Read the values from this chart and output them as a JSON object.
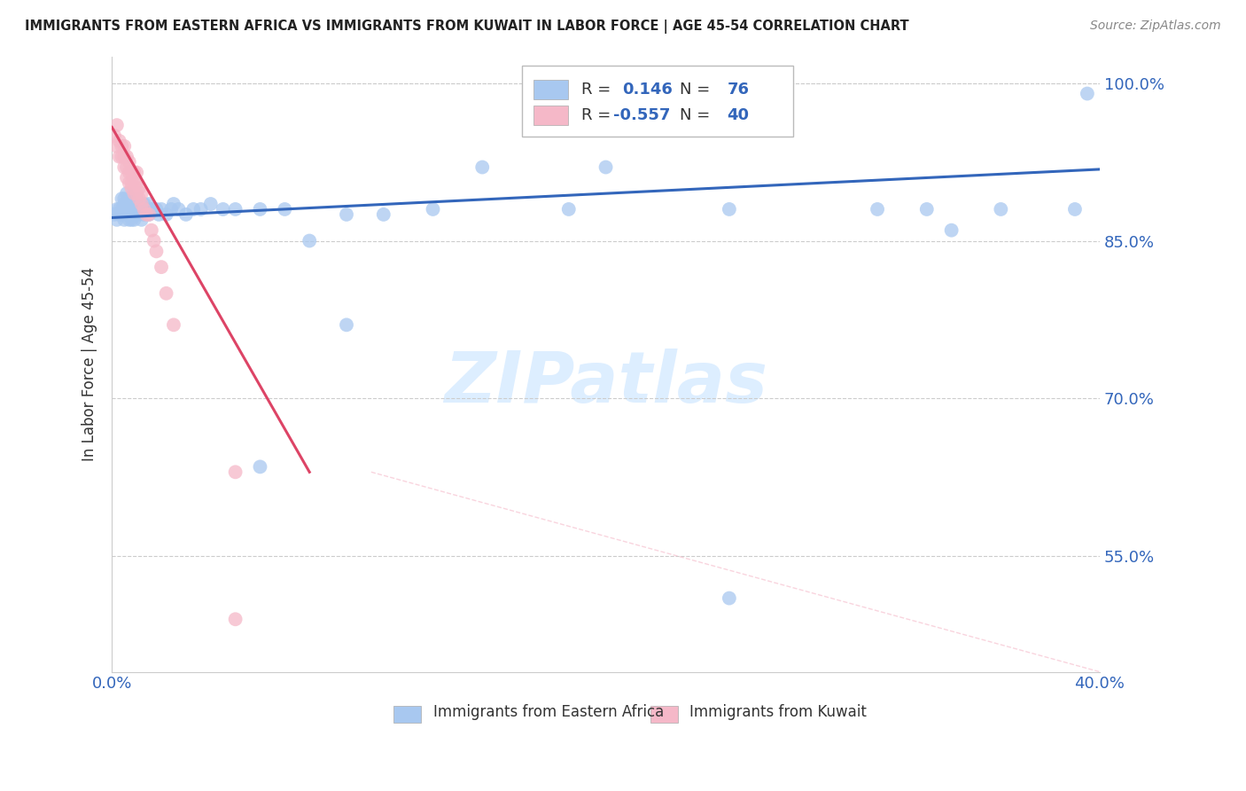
{
  "title": "IMMIGRANTS FROM EASTERN AFRICA VS IMMIGRANTS FROM KUWAIT IN LABOR FORCE | AGE 45-54 CORRELATION CHART",
  "source": "Source: ZipAtlas.com",
  "ylabel": "In Labor Force | Age 45-54",
  "legend_label1": "Immigrants from Eastern Africa",
  "legend_label2": "Immigrants from Kuwait",
  "R1": 0.146,
  "N1": 76,
  "R2": -0.557,
  "N2": 40,
  "xlim": [
    0.0,
    0.4
  ],
  "ylim": [
    0.44,
    1.025
  ],
  "yticks": [
    0.55,
    0.7,
    0.85,
    1.0
  ],
  "ytick_labels": [
    "55.0%",
    "70.0%",
    "85.0%",
    "100.0%"
  ],
  "xticks": [
    0.0,
    0.1,
    0.2,
    0.3,
    0.4
  ],
  "xtick_labels": [
    "0.0%",
    "",
    "",
    "",
    "40.0%"
  ],
  "color_blue": "#a8c8f0",
  "color_pink": "#f5b8c8",
  "line_blue": "#3366bb",
  "line_pink": "#dd4466",
  "watermark_color": "#ddeeff",
  "blue_scatter_x": [
    0.001,
    0.002,
    0.002,
    0.003,
    0.003,
    0.004,
    0.004,
    0.004,
    0.005,
    0.005,
    0.005,
    0.005,
    0.006,
    0.006,
    0.006,
    0.006,
    0.007,
    0.007,
    0.007,
    0.007,
    0.007,
    0.008,
    0.008,
    0.008,
    0.008,
    0.009,
    0.009,
    0.009,
    0.009,
    0.01,
    0.01,
    0.01,
    0.01,
    0.011,
    0.011,
    0.012,
    0.012,
    0.013,
    0.013,
    0.014,
    0.015,
    0.015,
    0.016,
    0.017,
    0.018,
    0.019,
    0.02,
    0.022,
    0.024,
    0.025,
    0.027,
    0.03,
    0.033,
    0.036,
    0.04,
    0.045,
    0.05,
    0.06,
    0.07,
    0.08,
    0.095,
    0.11,
    0.13,
    0.15,
    0.185,
    0.2,
    0.25,
    0.31,
    0.33,
    0.36,
    0.39,
    0.395,
    0.25,
    0.34,
    0.06,
    0.095
  ],
  "blue_scatter_y": [
    0.875,
    0.88,
    0.87,
    0.875,
    0.88,
    0.875,
    0.88,
    0.89,
    0.87,
    0.88,
    0.885,
    0.89,
    0.875,
    0.88,
    0.885,
    0.895,
    0.87,
    0.875,
    0.88,
    0.885,
    0.89,
    0.87,
    0.875,
    0.88,
    0.89,
    0.87,
    0.875,
    0.88,
    0.89,
    0.875,
    0.88,
    0.885,
    0.89,
    0.875,
    0.88,
    0.87,
    0.88,
    0.875,
    0.885,
    0.88,
    0.875,
    0.885,
    0.88,
    0.88,
    0.88,
    0.875,
    0.88,
    0.875,
    0.88,
    0.885,
    0.88,
    0.875,
    0.88,
    0.88,
    0.885,
    0.88,
    0.88,
    0.88,
    0.88,
    0.85,
    0.875,
    0.875,
    0.88,
    0.92,
    0.88,
    0.92,
    0.88,
    0.88,
    0.88,
    0.88,
    0.88,
    0.99,
    0.51,
    0.86,
    0.635,
    0.77
  ],
  "pink_scatter_x": [
    0.001,
    0.002,
    0.002,
    0.003,
    0.003,
    0.004,
    0.004,
    0.005,
    0.005,
    0.005,
    0.006,
    0.006,
    0.006,
    0.007,
    0.007,
    0.007,
    0.008,
    0.008,
    0.008,
    0.009,
    0.009,
    0.009,
    0.01,
    0.01,
    0.01,
    0.011,
    0.011,
    0.012,
    0.012,
    0.013,
    0.014,
    0.015,
    0.016,
    0.017,
    0.018,
    0.02,
    0.022,
    0.025,
    0.05,
    0.05
  ],
  "pink_scatter_y": [
    0.95,
    0.94,
    0.96,
    0.93,
    0.945,
    0.93,
    0.94,
    0.92,
    0.93,
    0.94,
    0.91,
    0.92,
    0.93,
    0.905,
    0.915,
    0.925,
    0.9,
    0.905,
    0.915,
    0.895,
    0.905,
    0.915,
    0.895,
    0.905,
    0.915,
    0.89,
    0.9,
    0.885,
    0.895,
    0.88,
    0.875,
    0.875,
    0.86,
    0.85,
    0.84,
    0.825,
    0.8,
    0.77,
    0.63,
    0.49
  ],
  "blue_line_x": [
    0.0,
    0.4
  ],
  "blue_line_y": [
    0.872,
    0.918
  ],
  "pink_line_x": [
    0.0,
    0.08
  ],
  "pink_line_y": [
    0.958,
    0.63
  ],
  "diag_line_x": [
    0.105,
    0.4
  ],
  "diag_line_y": [
    0.63,
    0.44
  ],
  "diag_line_color": "#f5b8c8"
}
